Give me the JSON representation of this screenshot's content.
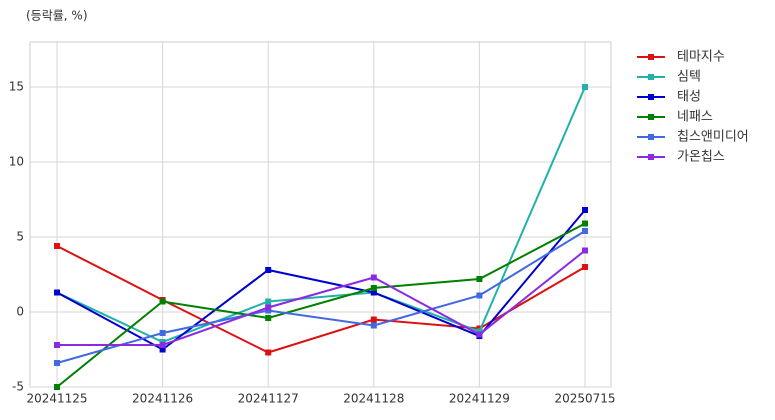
{
  "chart_data": {
    "type": "line",
    "y_label": "(등락률, %)",
    "categories": [
      "20241125",
      "20241126",
      "20241127",
      "20241128",
      "20241129",
      "20250715"
    ],
    "series": [
      {
        "name": "테마지수",
        "color": "#dd1111",
        "values": [
          4.4,
          0.8,
          -2.7,
          -0.5,
          -1.1,
          3.0
        ]
      },
      {
        "name": "심텍",
        "color": "#20b2aa",
        "values": [
          1.3,
          -2.0,
          0.7,
          1.3,
          -1.3,
          15.0
        ]
      },
      {
        "name": "태성",
        "color": "#0000cc",
        "values": [
          1.3,
          -2.5,
          2.8,
          1.3,
          -1.6,
          6.8
        ]
      },
      {
        "name": "네패스",
        "color": "#008000",
        "values": [
          -5.0,
          0.7,
          -0.4,
          1.6,
          2.2,
          5.9
        ]
      },
      {
        "name": "칩스앤미디어",
        "color": "#4169e1",
        "values": [
          -3.4,
          -1.4,
          0.1,
          -0.9,
          1.1,
          5.4
        ]
      },
      {
        "name": "가온칩스",
        "color": "#8a2be2",
        "values": [
          -2.2,
          -2.2,
          0.3,
          2.3,
          -1.5,
          4.1
        ]
      }
    ],
    "ylim": [
      -5,
      18
    ],
    "yticks": [
      -5,
      0,
      5,
      10,
      15
    ],
    "grid": true,
    "legend": "outside-right"
  }
}
